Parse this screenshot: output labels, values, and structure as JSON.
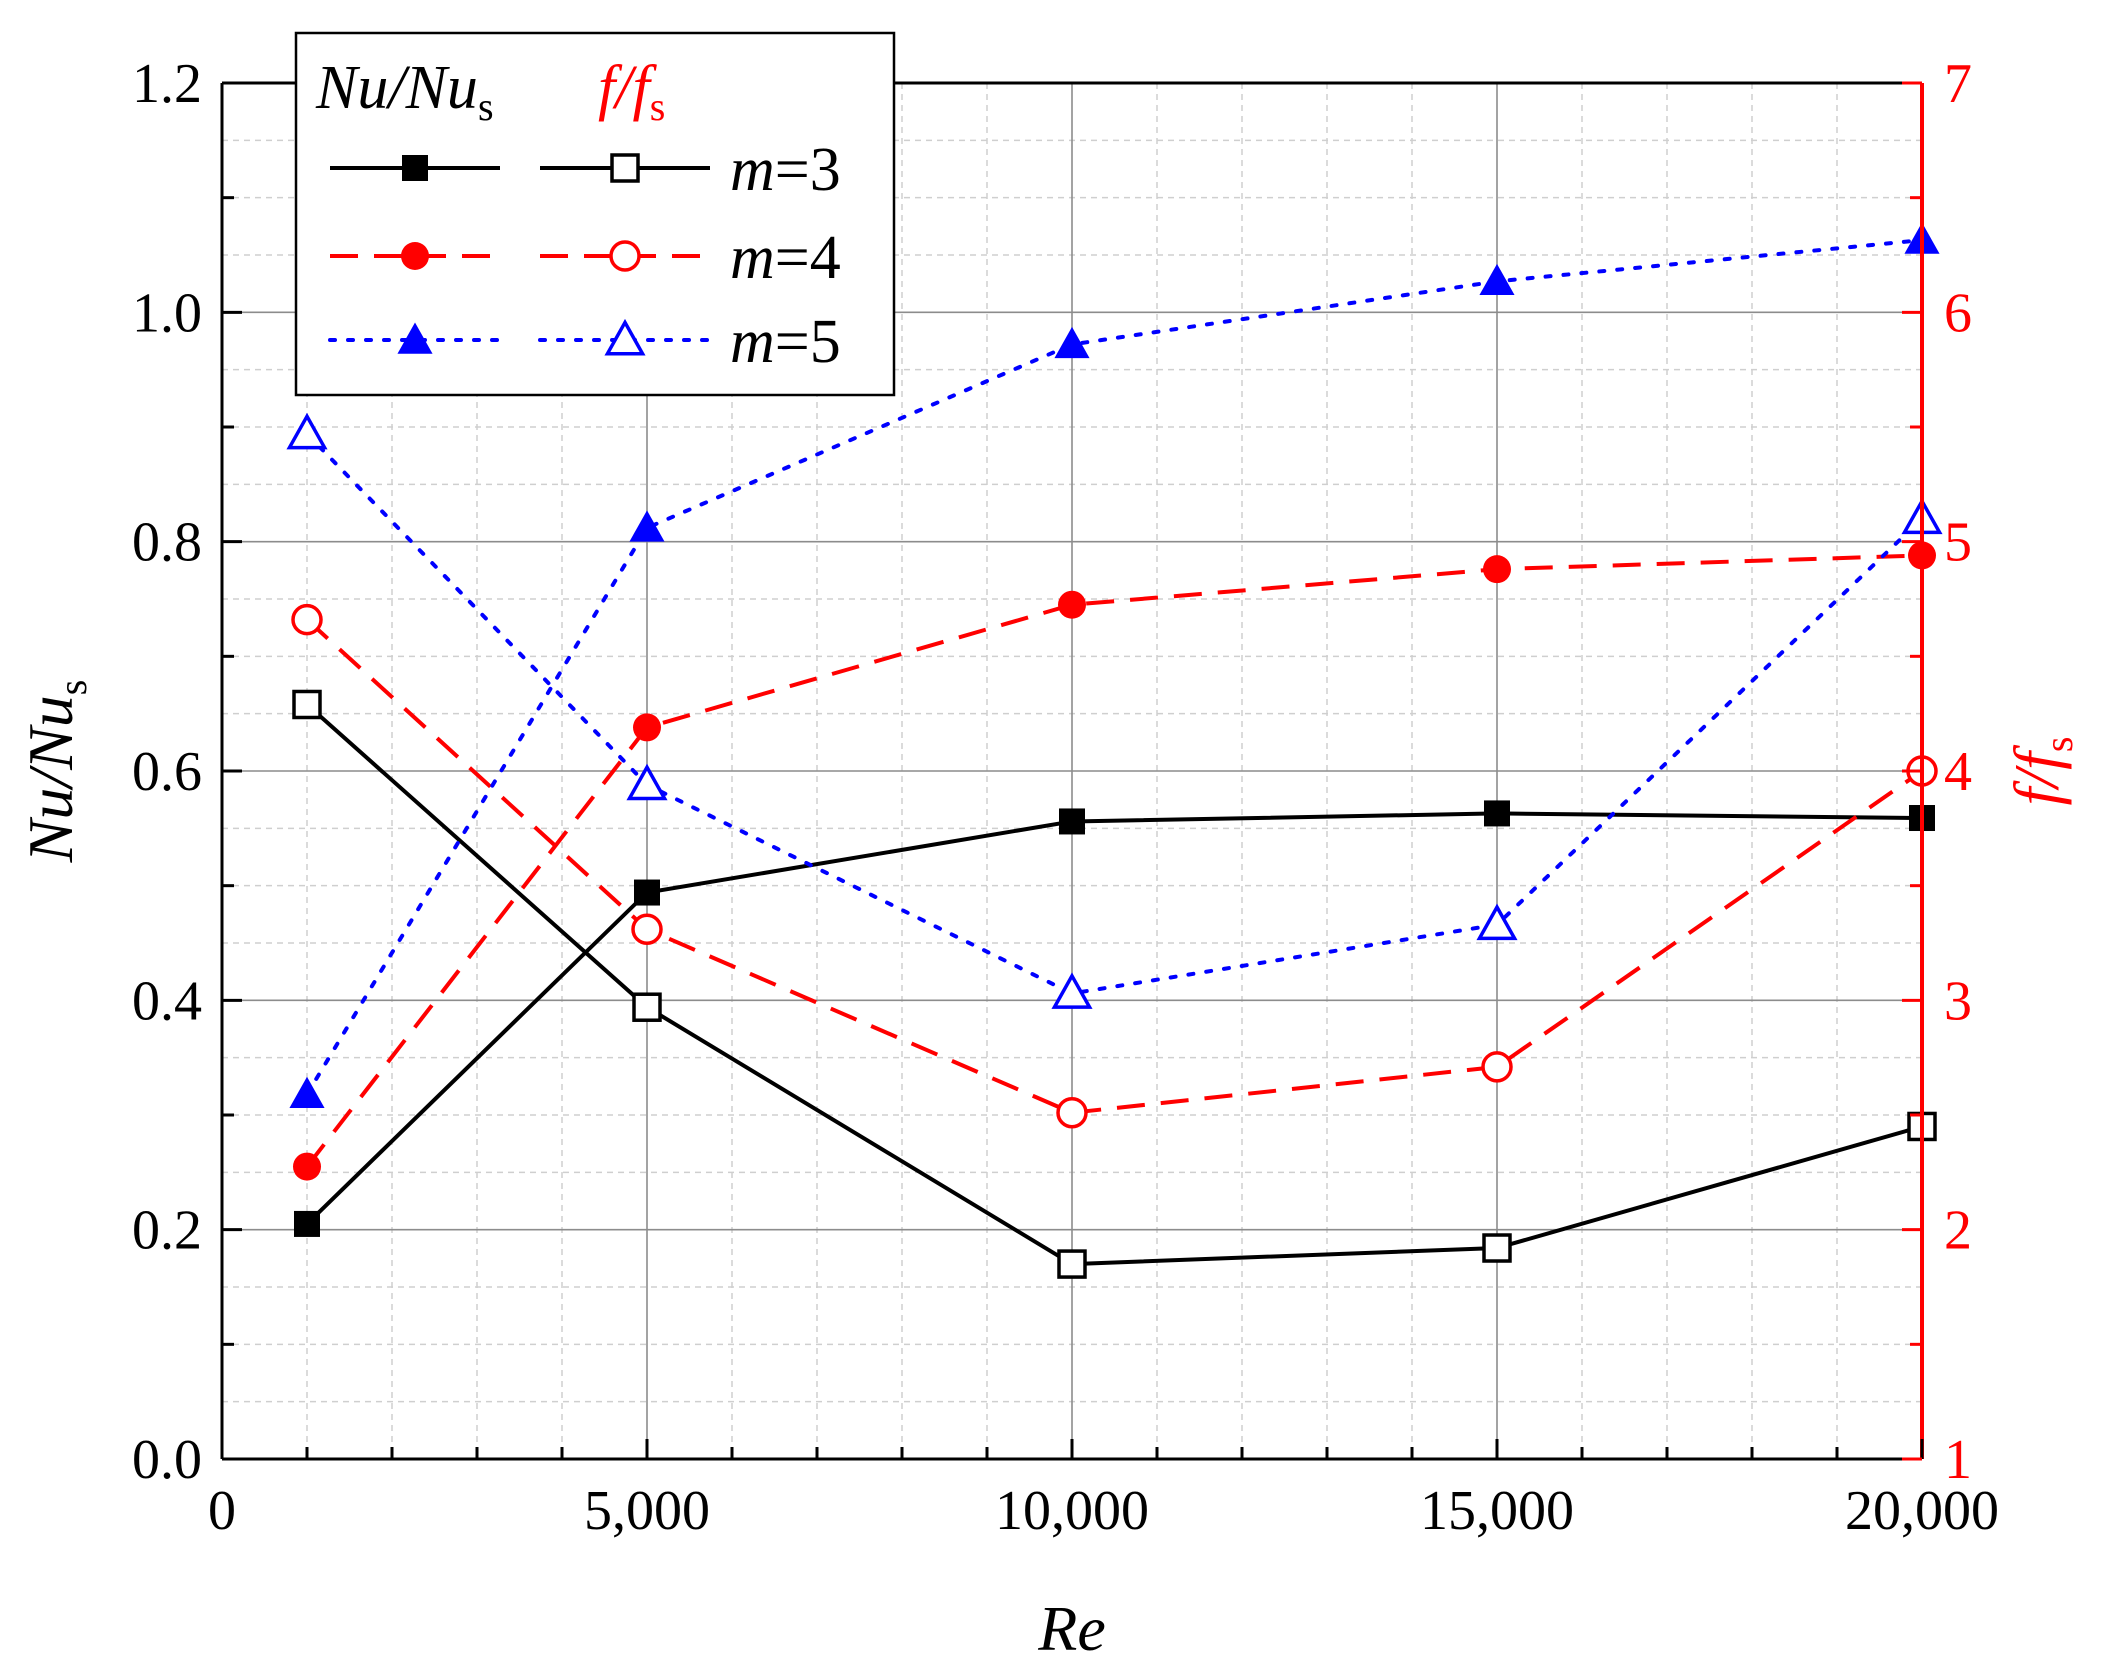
{
  "chart_data": {
    "type": "line",
    "x": [
      1000,
      5000,
      10000,
      15000,
      20000
    ],
    "xlabel": "Re",
    "xlim": [
      0,
      20000
    ],
    "xticks": [
      0,
      5000,
      10000,
      15000,
      20000
    ],
    "xtick_labels": [
      "0",
      "5,000",
      "10,000",
      "15,000",
      "20,000"
    ],
    "y_left": {
      "label_main": "Nu/Nu",
      "label_sub": "s",
      "lim": [
        0,
        1.2
      ],
      "ticks": [
        0.0,
        0.2,
        0.4,
        0.6,
        0.8,
        1.0,
        1.2
      ],
      "tick_labels": [
        "0.0",
        "0.2",
        "0.4",
        "0.6",
        "0.8",
        "1.0",
        "1.2"
      ]
    },
    "y_right": {
      "label_main": "f/f",
      "label_sub": "s",
      "lim": [
        1,
        7
      ],
      "ticks": [
        1,
        2,
        3,
        4,
        5,
        6,
        7
      ],
      "tick_labels": [
        "1",
        "2",
        "3",
        "4",
        "5",
        "6",
        "7"
      ],
      "color": "#ff0000"
    },
    "grid": true,
    "series": [
      {
        "name": "Nu/Nus m=3",
        "axis": "left",
        "values": [
          0.205,
          0.494,
          0.556,
          0.563,
          0.559
        ],
        "color": "#000000",
        "dash": "solid",
        "marker": "square",
        "filled": true
      },
      {
        "name": "f/fs m=3",
        "axis": "right",
        "values": [
          4.29,
          2.97,
          1.85,
          1.92,
          2.45
        ],
        "color": "#000000",
        "dash": "solid",
        "marker": "square",
        "filled": false
      },
      {
        "name": "Nu/Nus m=4",
        "axis": "left",
        "values": [
          0.255,
          0.638,
          0.745,
          0.776,
          0.788
        ],
        "color": "#ff0000",
        "dash": "dashed",
        "marker": "circle",
        "filled": true
      },
      {
        "name": "f/fs m=4",
        "axis": "right",
        "values": [
          4.66,
          3.31,
          2.51,
          2.71,
          4.0
        ],
        "color": "#ff0000",
        "dash": "dashed",
        "marker": "circle",
        "filled": false
      },
      {
        "name": "Nu/Nus m=5",
        "axis": "left",
        "values": [
          0.318,
          0.812,
          0.972,
          1.027,
          1.063
        ],
        "color": "#0000ff",
        "dash": "dotted",
        "marker": "triangle",
        "filled": true
      },
      {
        "name": "f/fs m=5",
        "axis": "right",
        "values": [
          5.47,
          3.94,
          3.03,
          3.33,
          5.1
        ],
        "color": "#0000ff",
        "dash": "dotted",
        "marker": "triangle",
        "filled": false
      }
    ],
    "legend": {
      "placement": "top-left",
      "header_left_main": "Nu/Nu",
      "header_left_sub": "s",
      "header_right_main": "f/f",
      "header_right_sub": "s",
      "rows": [
        {
          "label_var": "m",
          "label_rest": "=3",
          "color": "#000000",
          "dash": "solid",
          "marker": "square"
        },
        {
          "label_var": "m",
          "label_rest": "=4",
          "color": "#ff0000",
          "dash": "dashed",
          "marker": "circle"
        },
        {
          "label_var": "m",
          "label_rest": "=5",
          "color": "#0000ff",
          "dash": "dotted",
          "marker": "triangle"
        }
      ]
    }
  }
}
